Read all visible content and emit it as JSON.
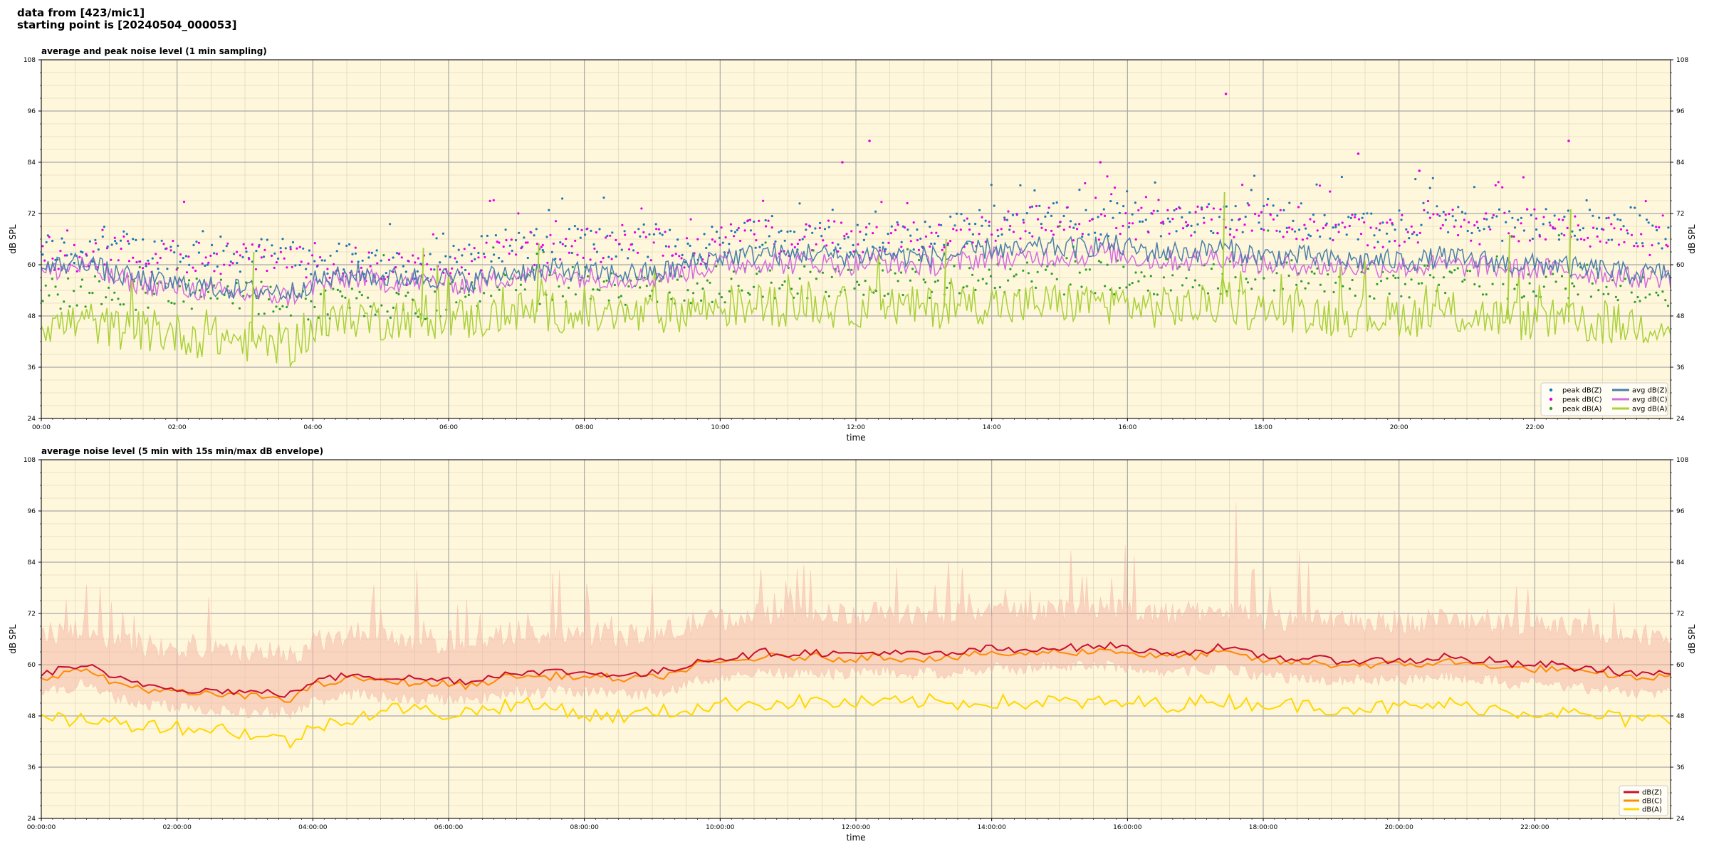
{
  "header": {
    "line1": "data from [423/mic1]",
    "line2": "starting point is [20240504_000053]"
  },
  "colors": {
    "plot_bg": "#fff7dc",
    "peak_z": "#1f77b4",
    "peak_c": "#e600e6",
    "peak_a": "#2ca02c",
    "avg_z": "#4a7fa8",
    "avg_c": "#d46be0",
    "avg_a": "#a8d13a",
    "env": "#f4b8a8",
    "db_z": "#c8102e",
    "db_c": "#ff8c00",
    "db_a": "#ffd700"
  },
  "chart_data": [
    {
      "type": "line",
      "title": "average and peak noise level (1 min sampling)",
      "xlabel": "time",
      "ylabel": "dB SPL",
      "xlim_hours": [
        0,
        24
      ],
      "ylim": [
        24,
        108
      ],
      "yticks": [
        24,
        36,
        48,
        60,
        72,
        84,
        96,
        108
      ],
      "xtick_labels": [
        "00:00",
        "02:00",
        "04:00",
        "06:00",
        "08:00",
        "10:00",
        "12:00",
        "14:00",
        "16:00",
        "18:00",
        "20:00",
        "22:00"
      ],
      "grid": true,
      "legend_position": "lower-right",
      "legend_columns": 2,
      "series": [
        {
          "name": "peak dB(Z)",
          "kind": "scatter",
          "color_key": "peak_z",
          "base": [
            64,
            63,
            65,
            63,
            63,
            63,
            62,
            63,
            61,
            61,
            61,
            60,
            62,
            63,
            66,
            64,
            66,
            64,
            66,
            64,
            66,
            68,
            67,
            68,
            66,
            66,
            68,
            68,
            70,
            71,
            71,
            70,
            71,
            70,
            71,
            70,
            72,
            71,
            70,
            68,
            69,
            71,
            70,
            69,
            70,
            69,
            69,
            68,
            66
          ]
        },
        {
          "name": "peak dB(C)",
          "kind": "scatter",
          "color_key": "peak_c",
          "base": [
            63,
            62,
            64,
            62,
            62,
            62,
            61,
            62,
            60,
            60,
            60,
            59,
            61,
            62,
            65,
            63,
            65,
            63,
            65,
            63,
            65,
            67,
            66,
            67,
            65,
            65,
            67,
            67,
            69,
            70,
            70,
            69,
            70,
            69,
            70,
            69,
            71,
            70,
            69,
            67,
            68,
            70,
            69,
            68,
            69,
            68,
            68,
            67,
            65
          ]
        },
        {
          "name": "peak dB(A)",
          "kind": "scatter",
          "color_key": "peak_a",
          "base": [
            54,
            53,
            55,
            53,
            53,
            53,
            52,
            52,
            51,
            51,
            51,
            50,
            52,
            53,
            55,
            54,
            56,
            54,
            55,
            54,
            55,
            56,
            56,
            56,
            55,
            55,
            56,
            56,
            57,
            57,
            57,
            57,
            57,
            57,
            57,
            57,
            58,
            57,
            57,
            56,
            56,
            57,
            57,
            56,
            56,
            56,
            56,
            55,
            54
          ]
        },
        {
          "name": "avg dB(Z)",
          "kind": "line",
          "color_key": "avg_z",
          "values": [
            59,
            60,
            61,
            58,
            57,
            56,
            55.5,
            55,
            54.5,
            54,
            54,
            53.5,
            56,
            57,
            58,
            57,
            57,
            57,
            57,
            56,
            57.5,
            58.5,
            58.5,
            59,
            58,
            58,
            58,
            58,
            59,
            61,
            62,
            62,
            63,
            62,
            63,
            62,
            62,
            63,
            62,
            62,
            62,
            63,
            64,
            63,
            64,
            64,
            64,
            65,
            64,
            63,
            63,
            63,
            64,
            63,
            62,
            62,
            62,
            61,
            61,
            61,
            61,
            61,
            62,
            61,
            61,
            60,
            60,
            60,
            59,
            59,
            58,
            58,
            58
          ]
        },
        {
          "name": "avg dB(C)",
          "kind": "line",
          "color_key": "avg_c",
          "values": [
            58,
            59,
            60,
            57,
            56,
            55,
            54.5,
            54,
            53.5,
            53,
            53,
            52.5,
            55,
            56,
            57,
            56,
            56,
            56,
            56,
            55,
            56.5,
            57.5,
            57.5,
            58,
            57,
            57,
            57,
            57,
            58,
            59,
            60,
            60,
            61,
            60,
            61,
            60,
            60,
            61,
            60,
            60,
            60,
            61,
            62,
            61,
            62,
            62,
            62,
            63,
            62,
            61,
            61,
            61,
            62,
            61,
            60,
            60,
            60,
            59.5,
            59.5,
            59.5,
            59.5,
            59.5,
            60,
            59.5,
            59.5,
            59,
            59,
            59,
            58,
            58,
            57,
            57,
            57
          ]
        },
        {
          "name": "avg dB(A)",
          "kind": "line",
          "color_key": "avg_a",
          "values": [
            46,
            46,
            47,
            45,
            45,
            44,
            44,
            43,
            43,
            42,
            42,
            41,
            45,
            46,
            48,
            47,
            48,
            47,
            48,
            47,
            48,
            49,
            49,
            49,
            48,
            48,
            48,
            48,
            49,
            50,
            50,
            50,
            51,
            50,
            51,
            50,
            50,
            51,
            50,
            50,
            50,
            51,
            51,
            50,
            51,
            51,
            51,
            51,
            51,
            50,
            50,
            50,
            51,
            50,
            49,
            49,
            49,
            48,
            48,
            48,
            48,
            48,
            49,
            48,
            48,
            47,
            47,
            47,
            46,
            46,
            46,
            46,
            46
          ]
        }
      ],
      "spike_values": [
        {
          "t": 3.1,
          "v": 63
        },
        {
          "t": 5.6,
          "v": 64
        },
        {
          "t": 7.3,
          "v": 65
        },
        {
          "t": 13.3,
          "v": 66
        },
        {
          "t": 17.4,
          "v": 77
        },
        {
          "t": 21.6,
          "v": 67
        },
        {
          "t": 22.5,
          "v": 73
        }
      ],
      "outliers": [
        {
          "t": 17.45,
          "v": 100
        },
        {
          "t": 22.5,
          "v": 89
        },
        {
          "t": 12.2,
          "v": 89
        },
        {
          "t": 19.4,
          "v": 86
        },
        {
          "t": 11.8,
          "v": 84
        },
        {
          "t": 15.6,
          "v": 84
        },
        {
          "t": 20.3,
          "v": 82
        }
      ]
    },
    {
      "type": "line",
      "title": "average noise level (5 min with 15s min/max dB envelope)",
      "xlabel": "time",
      "ylabel": "dB SPL",
      "xlim_hours": [
        0,
        24
      ],
      "ylim": [
        24,
        108
      ],
      "yticks": [
        24,
        36,
        48,
        60,
        72,
        84,
        96,
        108
      ],
      "xtick_labels": [
        "00:00:00",
        "02:00:00",
        "04:00:00",
        "06:00:00",
        "08:00:00",
        "10:00:00",
        "12:00:00",
        "14:00:00",
        "16:00:00",
        "18:00:00",
        "20:00:00",
        "22:00:00"
      ],
      "grid": true,
      "legend_position": "lower-right",
      "legend_columns": 1,
      "envelope": {
        "color_key": "env",
        "upper_offset": 6,
        "lower_offset": -3,
        "peak_max": 98
      },
      "series": [
        {
          "name": "dB(Z)",
          "color_key": "db_z",
          "values": [
            58,
            59,
            60,
            57,
            56,
            55,
            54.5,
            54,
            54,
            53.5,
            53.5,
            53,
            56,
            57,
            58,
            57,
            57,
            56.5,
            56.5,
            56,
            57.5,
            58.5,
            58,
            58.5,
            58,
            58,
            57.5,
            58,
            59,
            61,
            61.5,
            62,
            63,
            62.5,
            63,
            62.5,
            62.5,
            63,
            62.5,
            62.5,
            62.5,
            63,
            64,
            63,
            64,
            64,
            64,
            64.5,
            64,
            63,
            63,
            63,
            64,
            63,
            62,
            61.5,
            61.5,
            61,
            61,
            61,
            61,
            61,
            62,
            61,
            61,
            60,
            60,
            60,
            59,
            59,
            58,
            58,
            58
          ]
        },
        {
          "name": "dB(C)",
          "color_key": "db_c",
          "values": [
            57,
            58,
            59,
            56,
            55,
            54,
            53.5,
            53,
            53,
            52.5,
            52.5,
            52,
            55,
            56,
            57,
            56,
            56,
            55.5,
            55.5,
            55,
            56.5,
            57.5,
            57,
            57.5,
            57,
            57,
            56.5,
            57,
            58,
            60,
            60.5,
            61,
            62,
            61.5,
            62,
            61.5,
            61.5,
            62,
            61.5,
            61.5,
            61.5,
            62,
            63,
            62,
            63,
            63,
            63,
            63.5,
            63,
            62,
            62,
            62,
            63,
            62,
            61,
            60.5,
            60.5,
            60,
            60,
            60,
            60,
            60,
            61,
            60,
            60,
            59,
            59,
            59,
            58,
            58,
            57,
            57,
            57
          ]
        },
        {
          "name": "dB(A)",
          "color_key": "db_a",
          "values": [
            47,
            47,
            47.5,
            46.5,
            46,
            46,
            45.5,
            45,
            45,
            44,
            43,
            42,
            45,
            47,
            48,
            49,
            50,
            49,
            48.5,
            49,
            50,
            51,
            50,
            50,
            48,
            48,
            48,
            49,
            49,
            50,
            50.5,
            51,
            51,
            51,
            51.5,
            51,
            51,
            51,
            51,
            51.5,
            51,
            51,
            51.5,
            51,
            51,
            51.5,
            51,
            51,
            51,
            51,
            50.5,
            51,
            52,
            51,
            51,
            50.5,
            50.5,
            50,
            50,
            50,
            50,
            50,
            51,
            50,
            50,
            49,
            49,
            49,
            48,
            48,
            47,
            47,
            47
          ]
        }
      ]
    }
  ]
}
